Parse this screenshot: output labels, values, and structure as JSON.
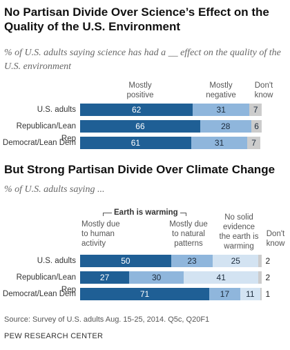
{
  "chart_data": [
    {
      "type": "bar",
      "stacked": true,
      "orientation": "horizontal",
      "title": "No Partisan Divide Over Science’s Effect on the Quality of the U.S. Environment",
      "subtitle": "% of U.S. adults saying science has had a __ effect on the quality of the U.S. environment",
      "categories": [
        "U.S. adults",
        "Republican/Lean Rep",
        "Democrat/Lean Dem"
      ],
      "series": [
        {
          "name": "Mostly positive",
          "values": [
            62,
            66,
            61
          ],
          "color": "#1f5f95"
        },
        {
          "name": "Mostly negative",
          "values": [
            31,
            28,
            31
          ],
          "color": "#8fb6dc"
        },
        {
          "name": "Don't know",
          "values": [
            7,
            6,
            7
          ],
          "color": "#cccccc"
        }
      ]
    },
    {
      "type": "bar",
      "stacked": true,
      "orientation": "horizontal",
      "title": "But Strong Partisan Divide Over Climate Change",
      "subtitle": "% of U.S. adults saying ...",
      "group_label": "Earth is warming",
      "categories": [
        "U.S. adults",
        "Republican/Lean Rep",
        "Democrat/Lean Dem"
      ],
      "series": [
        {
          "name": "Mostly due to human activity",
          "values": [
            50,
            27,
            71
          ],
          "color": "#1f5f95"
        },
        {
          "name": "Mostly due to natural patterns",
          "values": [
            23,
            30,
            17
          ],
          "color": "#8fb6dc"
        },
        {
          "name": "No solid evidence the earth is warming",
          "values": [
            25,
            41,
            11
          ],
          "color": "#d3e3f2"
        },
        {
          "name": "Don't know",
          "values": [
            2,
            2,
            1
          ],
          "color": "#cccccc"
        }
      ]
    }
  ],
  "source": "Source: Survey of U.S. adults Aug. 15-25, 2014. Q5c, Q20F1",
  "credit": "PEW RESEARCH CENTER"
}
